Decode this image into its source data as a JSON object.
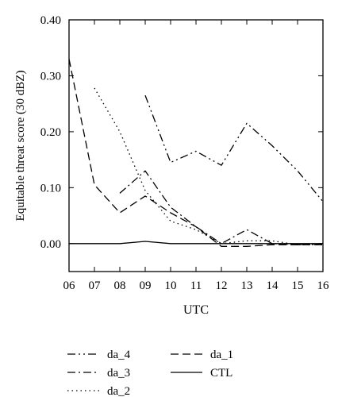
{
  "chart_data": {
    "type": "line",
    "title": "",
    "xlabel": "UTC",
    "ylabel": "Equitable threat score (30 dBZ)",
    "x": [
      "06",
      "07",
      "08",
      "09",
      "10",
      "11",
      "12",
      "13",
      "14",
      "15",
      "16"
    ],
    "xlim": [
      6,
      16
    ],
    "ylim": [
      -0.05,
      0.4
    ],
    "y_ticks": [
      "0.00",
      "0.10",
      "0.20",
      "0.30",
      "0.40"
    ],
    "grid": false,
    "legend_position": "bottom",
    "series": [
      {
        "name": "da_4",
        "style": "dash-dot-dot",
        "color": "#000000",
        "values": [
          null,
          null,
          null,
          0.265,
          0.145,
          0.165,
          0.14,
          0.215,
          0.175,
          0.13,
          0.075
        ]
      },
      {
        "name": "da_3",
        "style": "dash-dot",
        "color": "#000000",
        "values": [
          null,
          null,
          0.09,
          0.13,
          0.065,
          0.03,
          0.0,
          0.025,
          0.0,
          -0.002,
          0.0
        ]
      },
      {
        "name": "da_2",
        "style": "dotted",
        "color": "#000000",
        "values": [
          null,
          0.278,
          0.2,
          0.095,
          0.04,
          0.025,
          0.0,
          0.005,
          0.005,
          -0.002,
          -0.002
        ]
      },
      {
        "name": "da_1",
        "style": "dashed",
        "color": "#000000",
        "values": [
          0.33,
          0.105,
          0.055,
          0.085,
          0.055,
          0.03,
          -0.005,
          -0.005,
          -0.002,
          -0.002,
          -0.002
        ]
      },
      {
        "name": "CTL",
        "style": "solid",
        "color": "#000000",
        "values": [
          0.0,
          0.0,
          0.0,
          0.004,
          0.0,
          0.0,
          0.0,
          0.0,
          0.0,
          0.0,
          0.0
        ]
      }
    ]
  }
}
